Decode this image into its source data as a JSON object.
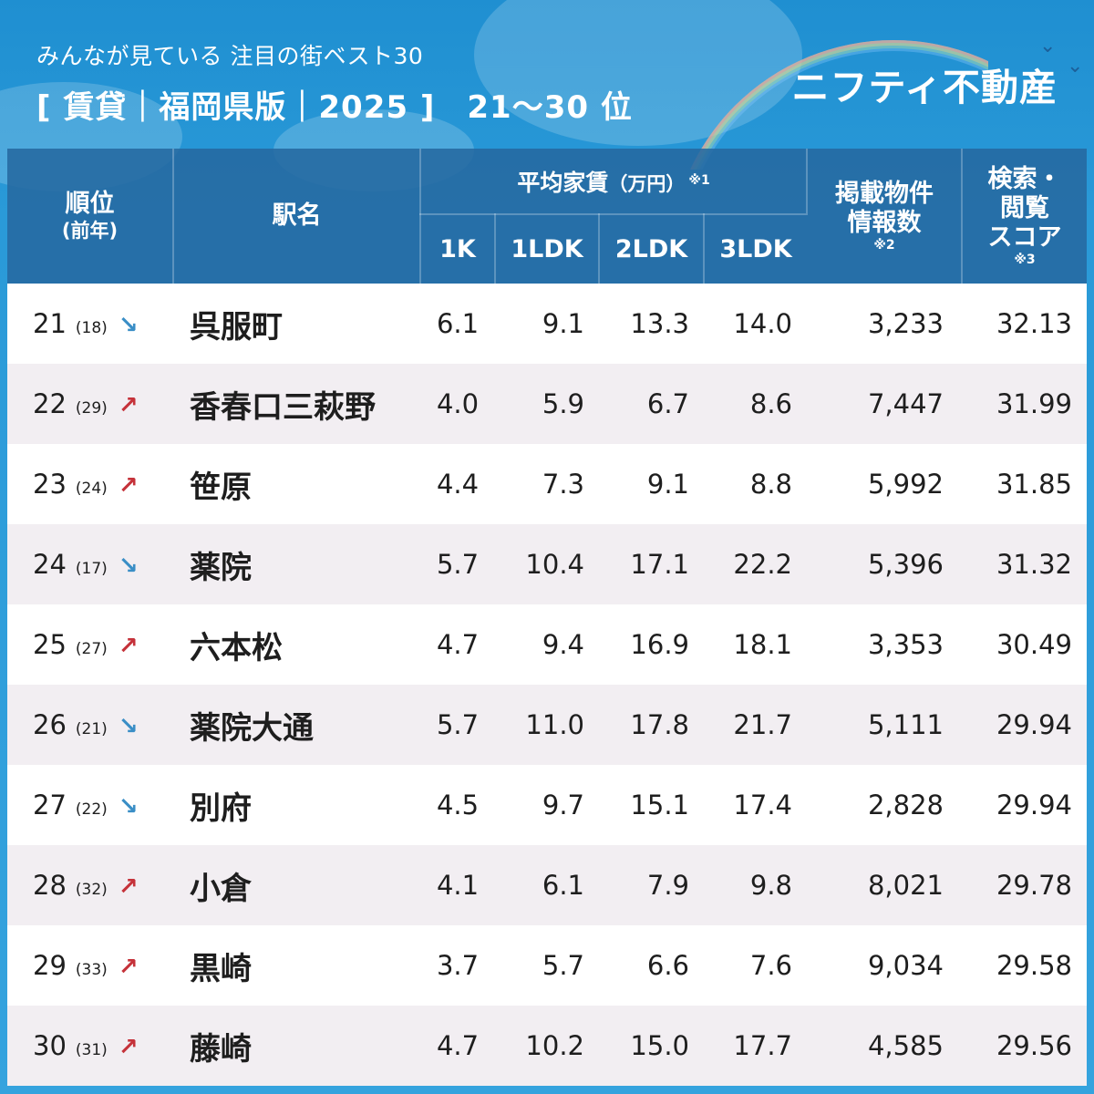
{
  "header": {
    "subtitle": "みんなが見ている 注目の街ベスト30",
    "title": "[ 賃貸｜福岡県版｜2025 ]　21～30 位",
    "brand": "ニフティ不動産"
  },
  "columns": {
    "rank": "順位",
    "rank_prev": "(前年)",
    "station": "駅名",
    "rent": "平均家賃",
    "rent_unit": "（万円）",
    "rent_note": "※1",
    "rent_1k": "1K",
    "rent_1ldk": "1LDK",
    "rent_2ldk": "2LDK",
    "rent_3ldk": "3LDK",
    "listings_line1": "掲載物件",
    "listings_line2": "情報数",
    "listings_note": "※2",
    "score_line1": "検索・",
    "score_line2": "閲覧",
    "score_line3": "スコア",
    "score_note": "※3"
  },
  "rows": [
    {
      "rank": "21",
      "prev": "(18)",
      "arrow": "↘",
      "trend": "down",
      "station": "呉服町",
      "k1": "6.1",
      "ldk1": "9.1",
      "ldk2": "13.3",
      "ldk3": "14.0",
      "listings": "3,233",
      "score": "32.13"
    },
    {
      "rank": "22",
      "prev": "(29)",
      "arrow": "↗",
      "trend": "up",
      "station": "香春口三萩野",
      "k1": "4.0",
      "ldk1": "5.9",
      "ldk2": "6.7",
      "ldk3": "8.6",
      "listings": "7,447",
      "score": "31.99"
    },
    {
      "rank": "23",
      "prev": "(24)",
      "arrow": "↗",
      "trend": "up",
      "station": "笹原",
      "k1": "4.4",
      "ldk1": "7.3",
      "ldk2": "9.1",
      "ldk3": "8.8",
      "listings": "5,992",
      "score": "31.85"
    },
    {
      "rank": "24",
      "prev": "(17)",
      "arrow": "↘",
      "trend": "down",
      "station": "薬院",
      "k1": "5.7",
      "ldk1": "10.4",
      "ldk2": "17.1",
      "ldk3": "22.2",
      "listings": "5,396",
      "score": "31.32"
    },
    {
      "rank": "25",
      "prev": "(27)",
      "arrow": "↗",
      "trend": "up",
      "station": "六本松",
      "k1": "4.7",
      "ldk1": "9.4",
      "ldk2": "16.9",
      "ldk3": "18.1",
      "listings": "3,353",
      "score": "30.49"
    },
    {
      "rank": "26",
      "prev": "(21)",
      "arrow": "↘",
      "trend": "down",
      "station": "薬院大通",
      "k1": "5.7",
      "ldk1": "11.0",
      "ldk2": "17.8",
      "ldk3": "21.7",
      "listings": "5,111",
      "score": "29.94"
    },
    {
      "rank": "27",
      "prev": "(22)",
      "arrow": "↘",
      "trend": "down",
      "station": "別府",
      "k1": "4.5",
      "ldk1": "9.7",
      "ldk2": "15.1",
      "ldk3": "17.4",
      "listings": "2,828",
      "score": "29.94"
    },
    {
      "rank": "28",
      "prev": "(32)",
      "arrow": "↗",
      "trend": "up",
      "station": "小倉",
      "k1": "4.1",
      "ldk1": "6.1",
      "ldk2": "7.9",
      "ldk3": "9.8",
      "listings": "8,021",
      "score": "29.78"
    },
    {
      "rank": "29",
      "prev": "(33)",
      "arrow": "↗",
      "trend": "up",
      "station": "黒崎",
      "k1": "3.7",
      "ldk1": "5.7",
      "ldk2": "6.6",
      "ldk3": "7.6",
      "listings": "9,034",
      "score": "29.58"
    },
    {
      "rank": "30",
      "prev": "(31)",
      "arrow": "↗",
      "trend": "up",
      "station": "藤崎",
      "k1": "4.7",
      "ldk1": "10.2",
      "ldk2": "15.0",
      "ldk3": "17.7",
      "listings": "4,585",
      "score": "29.56"
    }
  ]
}
